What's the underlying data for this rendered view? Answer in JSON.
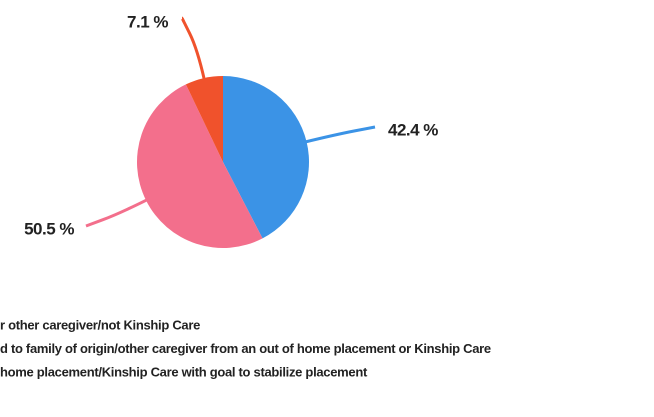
{
  "chart_data": {
    "type": "pie",
    "series": [
      {
        "name": "r other caregiver/not Kinship Care",
        "color": "#3b93e6"
      },
      {
        "name": "d to family of origin/other caregiver from an out of home placement or Kinship Care",
        "color": "#f36f8c"
      },
      {
        "name": "home placement/Kinship Care with goal to stabilize placement",
        "color": "#f0522c"
      }
    ],
    "values": [
      42.4,
      50.5,
      7.1
    ],
    "value_labels": [
      "42.4 %",
      "50.5 %",
      "7.1 %"
    ]
  }
}
